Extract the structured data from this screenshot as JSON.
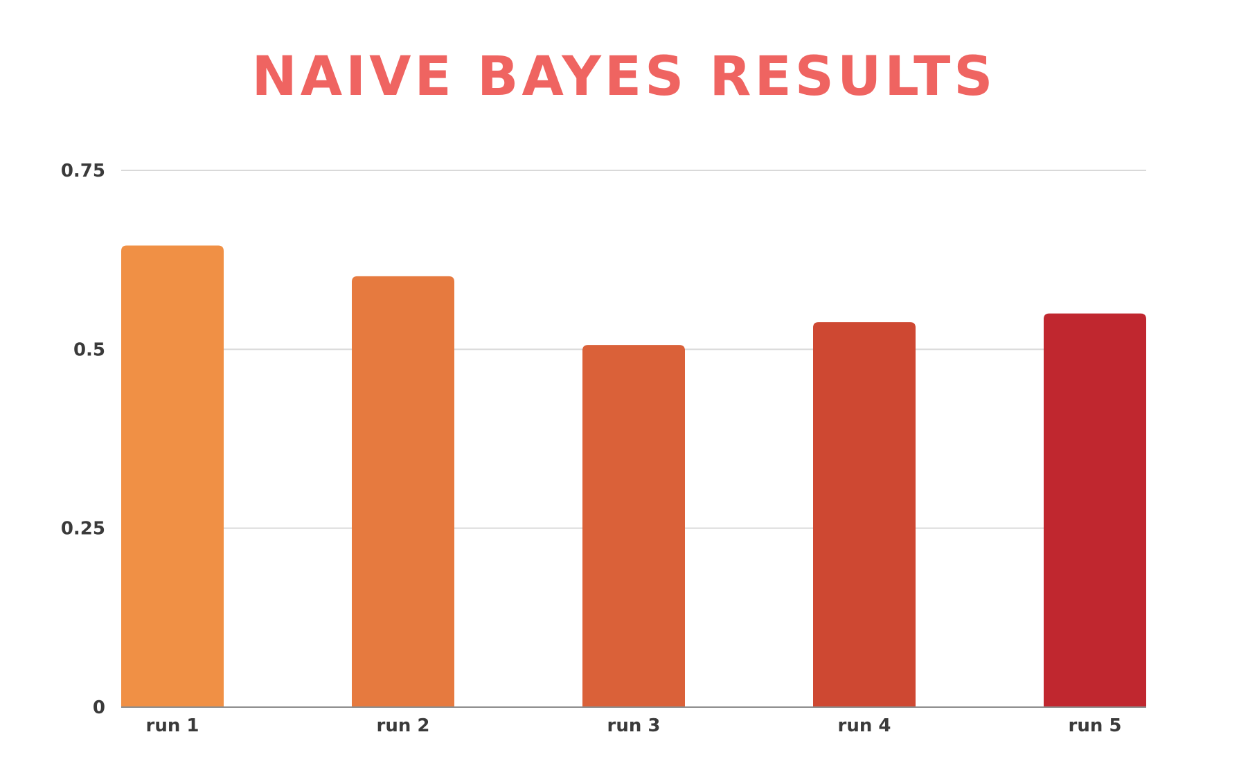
{
  "chart_data": {
    "type": "bar",
    "title": "NAIVE BAYES RESULTS",
    "xlabel": "",
    "ylabel": "",
    "categories": [
      "run 1",
      "run 2",
      "run 3",
      "run 4",
      "run 5"
    ],
    "values": [
      0.645,
      0.602,
      0.506,
      0.538,
      0.55
    ],
    "ylim": [
      0,
      0.75
    ],
    "yticks": [
      0,
      0.25,
      0.5,
      0.75
    ],
    "ytick_labels": [
      "0",
      "0.25",
      "0.5",
      "0.75"
    ],
    "grid": true,
    "legend": "none",
    "bar_colors": [
      "#F09045",
      "#E67A3F",
      "#DA6139",
      "#CE4832",
      "#C0272F"
    ],
    "title_color": "#EF6461",
    "grid_color": "#d9d9d9",
    "axis_color": "#8c8c8c"
  }
}
